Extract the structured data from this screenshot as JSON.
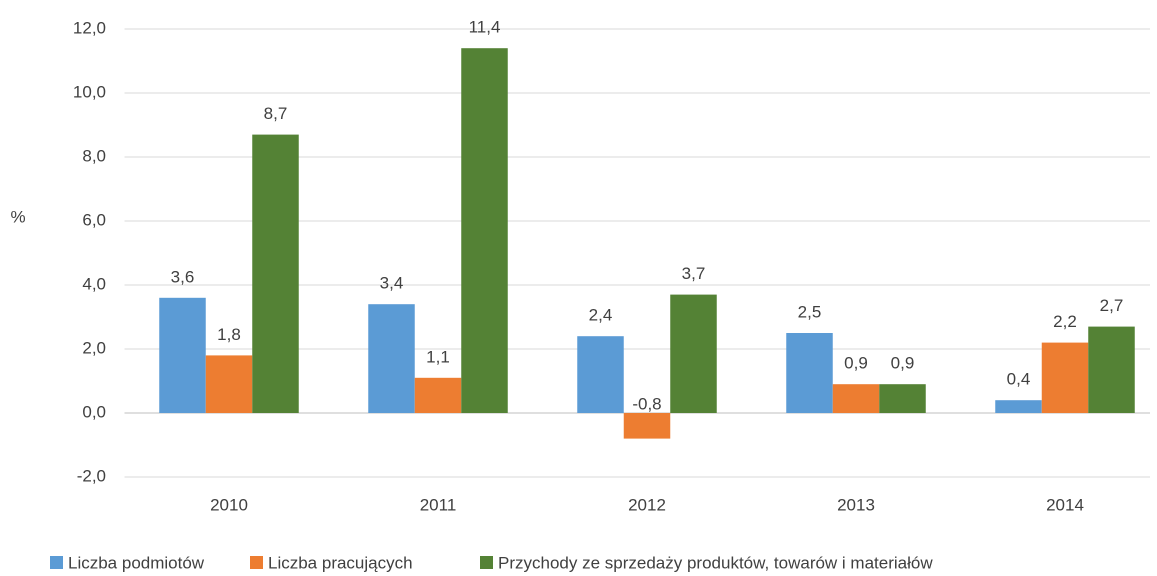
{
  "chart_data": {
    "type": "bar",
    "y_label": "%",
    "categories": [
      "2010",
      "2011",
      "2012",
      "2013",
      "2014"
    ],
    "series": [
      {
        "name": "Liczba podmiotów",
        "color": "#5b9bd5",
        "values": [
          3.6,
          3.4,
          2.4,
          2.5,
          0.4
        ],
        "value_labels": [
          "3,6",
          "3,4",
          "2,4",
          "2,5",
          "0,4"
        ]
      },
      {
        "name": "Liczba pracujących",
        "color": "#ed7d31",
        "values": [
          1.8,
          1.1,
          -0.8,
          0.9,
          2.2
        ],
        "value_labels": [
          "1,8",
          "1,1",
          "-0,8",
          "0,9",
          "2,2"
        ]
      },
      {
        "name": "Przychody ze sprzedaży produktów, towarów i materiałów",
        "color": "#548235",
        "values": [
          8.7,
          11.4,
          3.7,
          0.9,
          2.7
        ],
        "value_labels": [
          "8,7",
          "11,4",
          "3,7",
          "0,9",
          "2,7"
        ]
      }
    ],
    "ylim": [
      -2,
      12
    ],
    "yticks": [
      {
        "value": -2,
        "label": "-2,0"
      },
      {
        "value": 0,
        "label": "0,0"
      },
      {
        "value": 2,
        "label": "2,0"
      },
      {
        "value": 4,
        "label": "4,0"
      },
      {
        "value": 6,
        "label": "6,0"
      },
      {
        "value": 8,
        "label": "8,0"
      },
      {
        "value": 10,
        "label": "10,0"
      },
      {
        "value": 12,
        "label": "12,0"
      }
    ],
    "grid": true
  }
}
